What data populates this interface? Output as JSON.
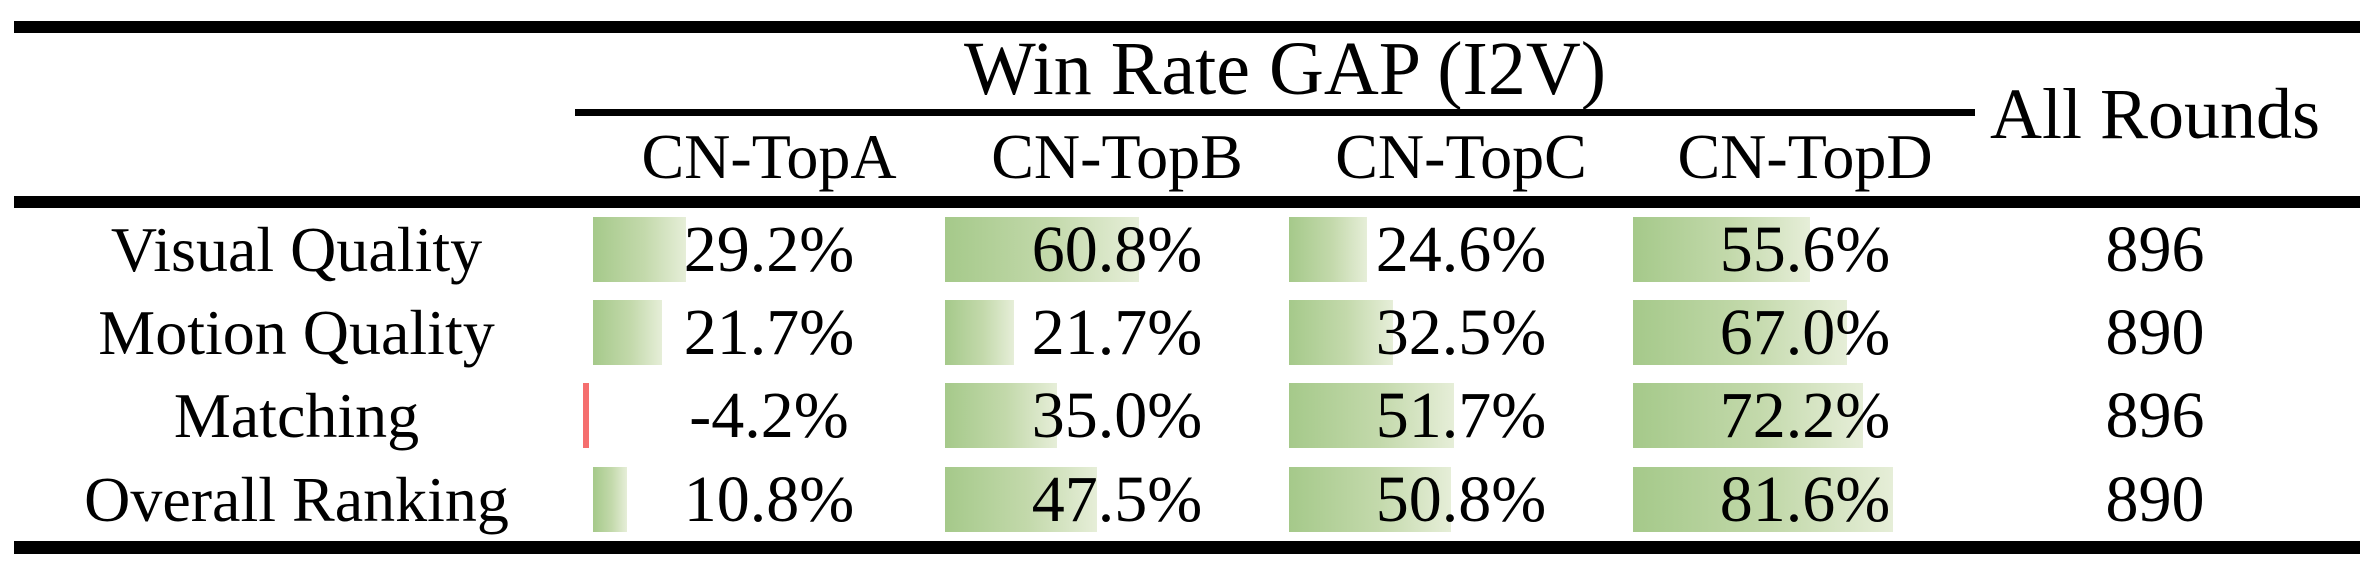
{
  "table": {
    "group_title": "Win Rate GAP (I2V)",
    "all_rounds_header": "All Rounds",
    "columns": [
      "CN-TopA",
      "CN-TopB",
      "CN-TopC",
      "CN-TopD"
    ],
    "rows": [
      {
        "label": "Visual Quality",
        "cells": [
          {
            "text": "29.2%",
            "value": 29.2
          },
          {
            "text": "60.8%",
            "value": 60.8
          },
          {
            "text": "24.6%",
            "value": 24.6
          },
          {
            "text": "55.6%",
            "value": 55.6
          }
        ],
        "all_rounds": "896"
      },
      {
        "label": "Motion Quality",
        "cells": [
          {
            "text": "21.7%",
            "value": 21.7
          },
          {
            "text": "21.7%",
            "value": 21.7
          },
          {
            "text": "32.5%",
            "value": 32.5
          },
          {
            "text": "67.0%",
            "value": 67.0
          }
        ],
        "all_rounds": "890"
      },
      {
        "label": "Matching",
        "cells": [
          {
            "text": "-4.2%",
            "value": -4.2
          },
          {
            "text": "35.0%",
            "value": 35.0
          },
          {
            "text": "51.7%",
            "value": 51.7
          },
          {
            "text": "72.2%",
            "value": 72.2
          }
        ],
        "all_rounds": "896"
      },
      {
        "label": "Overall Ranking",
        "cells": [
          {
            "text": "10.8%",
            "value": 10.8
          },
          {
            "text": "47.5%",
            "value": 47.5
          },
          {
            "text": "50.8%",
            "value": 50.8
          },
          {
            "text": "81.6%",
            "value": 81.6
          }
        ],
        "all_rounds": "890"
      }
    ]
  },
  "colors": {
    "positive_bar_gradient_start": "#a5c98a",
    "positive_bar_gradient_end": "#e6eed8",
    "negative_bar": "#f56e6e",
    "rule": "#000000",
    "text": "#000000",
    "background": "#ffffff"
  },
  "chart_data": {
    "type": "table",
    "title": "Win Rate GAP (I2V)",
    "columns": [
      "CN-TopA",
      "CN-TopB",
      "CN-TopC",
      "CN-TopD",
      "All Rounds"
    ],
    "row_labels": [
      "Visual Quality",
      "Motion Quality",
      "Matching",
      "Overall Ranking"
    ],
    "series": [
      {
        "name": "CN-TopA",
        "values": [
          29.2,
          21.7,
          -4.2,
          10.8
        ]
      },
      {
        "name": "CN-TopB",
        "values": [
          60.8,
          21.7,
          35.0,
          47.5
        ]
      },
      {
        "name": "CN-TopC",
        "values": [
          24.6,
          32.5,
          51.7,
          50.8
        ]
      },
      {
        "name": "CN-TopD",
        "values": [
          55.6,
          67.0,
          72.2,
          81.6
        ]
      }
    ],
    "all_rounds": [
      896,
      890,
      896,
      890
    ],
    "units": "%",
    "bar_style": "in-cell green gradient data bars proportional to value; thin red bar for negative value"
  }
}
